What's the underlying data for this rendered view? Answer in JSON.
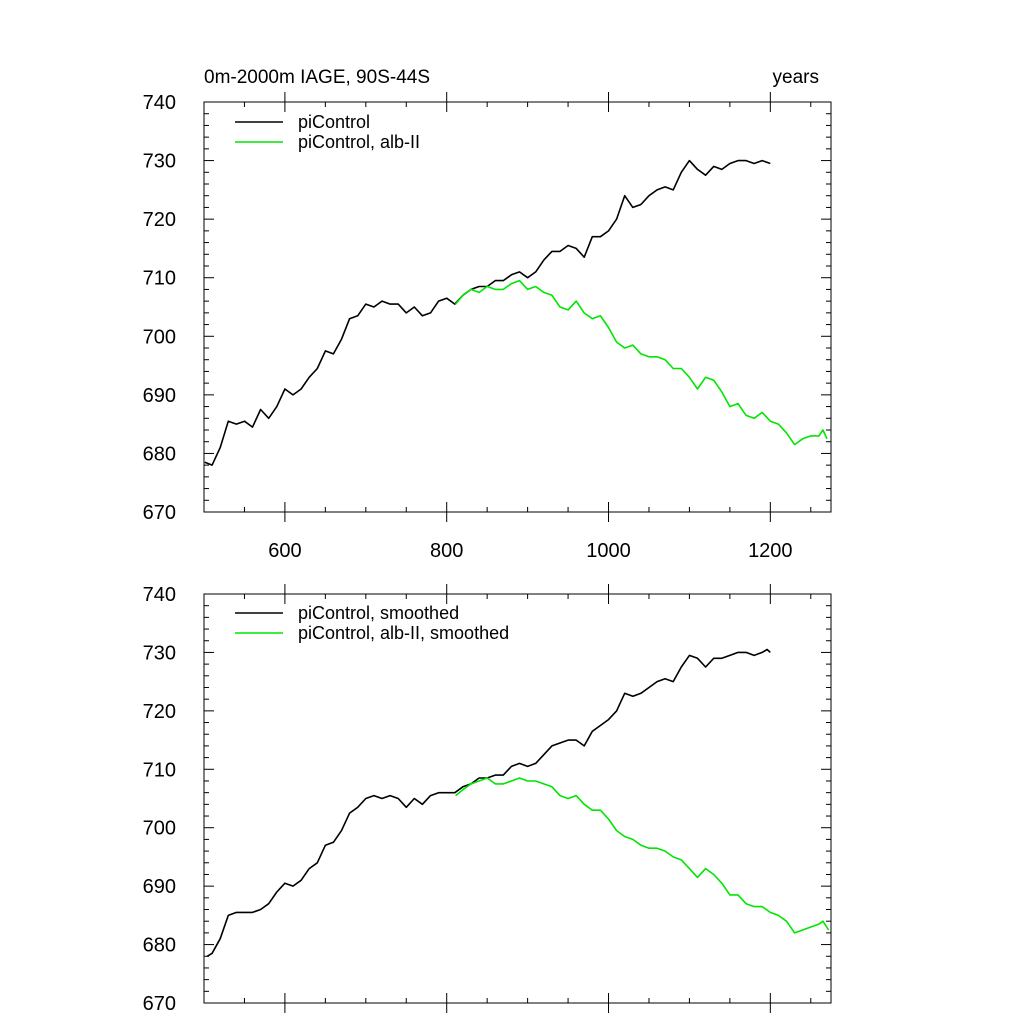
{
  "colors": {
    "piControl": "#000000",
    "albII": "#00e600",
    "axis": "#000000",
    "background": "#ffffff"
  },
  "chart_data": [
    {
      "type": "line",
      "title_left": "0m-2000m IAGE, 90S-44S",
      "title_right": "years",
      "xlabel": "",
      "ylabel": "",
      "xlim": [
        500,
        1275
      ],
      "ylim": [
        670,
        740
      ],
      "xticks": [
        600,
        800,
        1000,
        1200
      ],
      "xtick_labels": [
        "600",
        "800",
        "1000",
        "1200"
      ],
      "yticks": [
        670,
        680,
        690,
        700,
        710,
        720,
        730,
        740
      ],
      "ytick_labels": [
        "670",
        "680",
        "690",
        "700",
        "710",
        "720",
        "730",
        "740"
      ],
      "grid": false,
      "legend_position": "top-left",
      "series": [
        {
          "name": "piControl",
          "color": "#000000",
          "x": [
            501,
            510,
            520,
            530,
            540,
            550,
            560,
            570,
            580,
            590,
            600,
            610,
            620,
            630,
            640,
            650,
            660,
            670,
            680,
            690,
            700,
            710,
            720,
            730,
            740,
            750,
            760,
            770,
            780,
            790,
            800,
            810,
            820,
            830,
            840,
            850,
            860,
            870,
            880,
            890,
            900,
            910,
            920,
            930,
            940,
            950,
            960,
            970,
            980,
            990,
            1000,
            1010,
            1020,
            1030,
            1040,
            1050,
            1060,
            1070,
            1080,
            1090,
            1100,
            1110,
            1120,
            1130,
            1140,
            1150,
            1160,
            1170,
            1180,
            1190,
            1200
          ],
          "y": [
            678.5,
            678.0,
            681.0,
            685.5,
            685.0,
            685.5,
            684.5,
            687.5,
            686.0,
            688.0,
            691.0,
            690.0,
            691.0,
            693.0,
            694.5,
            697.5,
            697.0,
            699.5,
            703.0,
            703.5,
            705.5,
            705.0,
            706.0,
            705.5,
            705.5,
            704.0,
            705.0,
            703.5,
            704.0,
            706.0,
            706.5,
            705.5,
            707.0,
            708.0,
            708.5,
            708.5,
            709.5,
            709.5,
            710.5,
            711.0,
            710.0,
            711.0,
            713.0,
            714.5,
            714.5,
            715.5,
            715.0,
            713.5,
            717.0,
            717.0,
            718.0,
            720.0,
            724.0,
            722.0,
            722.5,
            724.0,
            725.0,
            725.5,
            725.0,
            728.0,
            730.0,
            728.5,
            727.5,
            729.0,
            728.5,
            729.5,
            730.0,
            730.0,
            729.5,
            730.0,
            729.5
          ]
        },
        {
          "name": "piControl, alb-II",
          "color": "#00e600",
          "x": [
            811,
            820,
            830,
            840,
            850,
            860,
            870,
            880,
            890,
            900,
            910,
            920,
            930,
            940,
            950,
            960,
            970,
            980,
            990,
            1000,
            1010,
            1020,
            1030,
            1040,
            1050,
            1060,
            1070,
            1080,
            1090,
            1100,
            1110,
            1120,
            1130,
            1140,
            1150,
            1160,
            1170,
            1180,
            1190,
            1200,
            1210,
            1220,
            1230,
            1240,
            1250,
            1260,
            1265,
            1270
          ],
          "y": [
            705.5,
            707.0,
            708.0,
            707.5,
            708.5,
            708.0,
            708.0,
            709.0,
            709.5,
            708.0,
            708.5,
            707.5,
            707.0,
            705.0,
            704.5,
            706.0,
            704.0,
            703.0,
            703.5,
            701.5,
            699.0,
            698.0,
            698.5,
            697.0,
            696.5,
            696.5,
            696.0,
            694.5,
            694.5,
            693.0,
            691.0,
            693.0,
            692.5,
            690.5,
            688.0,
            688.5,
            686.5,
            686.0,
            687.0,
            685.5,
            685.0,
            683.5,
            681.5,
            682.5,
            683.0,
            683.0,
            684.0,
            682.5
          ]
        }
      ]
    },
    {
      "type": "line",
      "title_left": "",
      "title_right": "",
      "xlabel": "",
      "ylabel": "",
      "xlim": [
        500,
        1275
      ],
      "ylim": [
        670,
        740
      ],
      "xticks": [
        600,
        800,
        1000,
        1200
      ],
      "xtick_labels": [],
      "yticks": [
        670,
        680,
        690,
        700,
        710,
        720,
        730,
        740
      ],
      "ytick_labels": [
        "670",
        "680",
        "690",
        "700",
        "710",
        "720",
        "730",
        "740"
      ],
      "grid": false,
      "legend_position": "top-left",
      "series": [
        {
          "name": "piControl, smoothed",
          "color": "#000000",
          "x": [
            504,
            510,
            520,
            530,
            540,
            550,
            560,
            570,
            580,
            590,
            600,
            610,
            620,
            630,
            640,
            650,
            660,
            670,
            680,
            690,
            700,
            710,
            720,
            730,
            740,
            750,
            760,
            770,
            780,
            790,
            800,
            810,
            820,
            830,
            840,
            850,
            860,
            870,
            880,
            890,
            900,
            910,
            920,
            930,
            940,
            950,
            960,
            970,
            980,
            990,
            1000,
            1010,
            1020,
            1030,
            1040,
            1050,
            1060,
            1070,
            1080,
            1090,
            1100,
            1110,
            1120,
            1130,
            1140,
            1150,
            1160,
            1170,
            1180,
            1190,
            1196,
            1200
          ],
          "y": [
            678.0,
            678.5,
            681.0,
            685.0,
            685.5,
            685.5,
            685.5,
            686.0,
            687.0,
            689.0,
            690.5,
            690.0,
            691.0,
            693.0,
            694.0,
            697.0,
            697.5,
            699.5,
            702.5,
            703.5,
            705.0,
            705.5,
            705.0,
            705.5,
            705.0,
            703.5,
            705.0,
            704.0,
            705.5,
            706.0,
            706.0,
            706.0,
            707.0,
            707.5,
            708.5,
            708.5,
            709.0,
            709.0,
            710.5,
            711.0,
            710.5,
            711.0,
            712.5,
            714.0,
            714.5,
            715.0,
            715.0,
            714.0,
            716.5,
            717.5,
            718.5,
            720.0,
            723.0,
            722.5,
            723.0,
            724.0,
            725.0,
            725.5,
            725.0,
            727.5,
            729.5,
            729.0,
            727.5,
            729.0,
            729.0,
            729.5,
            730.0,
            730.0,
            729.5,
            730.0,
            730.5,
            730.0
          ]
        },
        {
          "name": "piControl, alb-II, smoothed",
          "color": "#00e600",
          "x": [
            811,
            820,
            830,
            840,
            850,
            860,
            870,
            880,
            890,
            900,
            910,
            920,
            930,
            940,
            950,
            960,
            970,
            980,
            990,
            1000,
            1010,
            1020,
            1030,
            1040,
            1050,
            1060,
            1070,
            1080,
            1090,
            1100,
            1110,
            1120,
            1130,
            1140,
            1150,
            1160,
            1170,
            1180,
            1190,
            1200,
            1210,
            1220,
            1230,
            1240,
            1250,
            1260,
            1265,
            1272
          ],
          "y": [
            705.5,
            706.5,
            707.5,
            708.0,
            708.5,
            707.5,
            707.5,
            708.0,
            708.5,
            708.0,
            708.0,
            707.5,
            707.0,
            705.5,
            705.0,
            705.5,
            704.0,
            703.0,
            703.0,
            701.5,
            699.5,
            698.5,
            698.0,
            697.0,
            696.5,
            696.5,
            696.0,
            695.0,
            694.5,
            693.0,
            691.5,
            693.0,
            692.0,
            690.5,
            688.5,
            688.5,
            687.0,
            686.5,
            686.5,
            685.5,
            685.0,
            684.0,
            682.0,
            682.5,
            683.0,
            683.5,
            684.0,
            682.5
          ]
        }
      ]
    }
  ]
}
